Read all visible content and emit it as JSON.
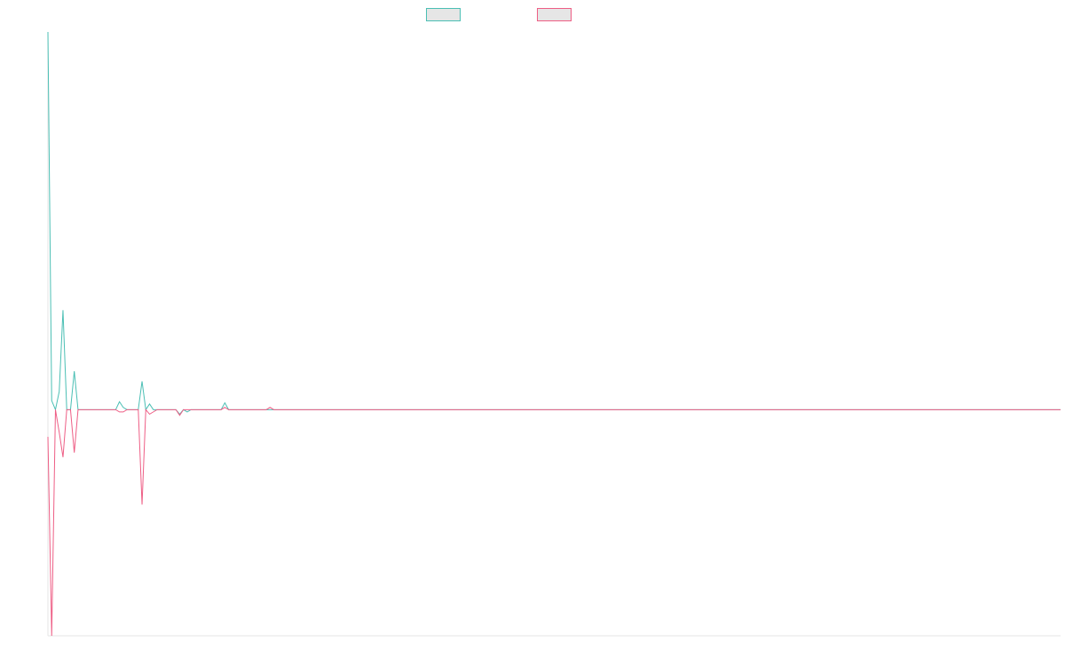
{
  "chart_data": {
    "type": "line",
    "title": "",
    "xlabel": "",
    "ylabel": "",
    "grid": false,
    "legend_position": "top-center",
    "x_count": 270,
    "ylim": [
      -1.0,
      1.67
    ],
    "series": [
      {
        "key": "series-a",
        "color": "#4bbfb4",
        "points": [
          [
            0,
            1.67
          ],
          [
            1,
            0.04
          ],
          [
            2,
            0
          ],
          [
            3,
            0.08
          ],
          [
            4,
            0.44
          ],
          [
            5,
            0
          ],
          [
            6,
            0
          ],
          [
            7,
            0.17
          ],
          [
            8,
            0
          ],
          [
            18,
            0
          ],
          [
            19,
            0.035
          ],
          [
            20,
            0.01
          ],
          [
            21,
            0
          ],
          [
            24,
            0
          ],
          [
            25,
            0.125
          ],
          [
            26,
            0
          ],
          [
            27,
            0.025
          ],
          [
            28,
            0
          ],
          [
            34,
            0
          ],
          [
            35,
            -0.02
          ],
          [
            36,
            0
          ],
          [
            37,
            -0.01
          ],
          [
            38,
            0
          ],
          [
            46,
            0
          ],
          [
            47,
            0.03
          ],
          [
            48,
            0
          ],
          [
            269,
            0
          ]
        ]
      },
      {
        "key": "series-b",
        "color": "#ee5e85",
        "points": [
          [
            0,
            -0.12
          ],
          [
            1,
            -1.0
          ],
          [
            2,
            0
          ],
          [
            3,
            -0.1
          ],
          [
            4,
            -0.21
          ],
          [
            5,
            0
          ],
          [
            6,
            0
          ],
          [
            7,
            -0.19
          ],
          [
            8,
            0
          ],
          [
            18,
            0
          ],
          [
            19,
            -0.01
          ],
          [
            20,
            -0.01
          ],
          [
            21,
            0
          ],
          [
            24,
            0
          ],
          [
            25,
            -0.42
          ],
          [
            26,
            0
          ],
          [
            27,
            -0.02
          ],
          [
            28,
            -0.01
          ],
          [
            29,
            0
          ],
          [
            34,
            0
          ],
          [
            35,
            -0.025
          ],
          [
            36,
            0
          ],
          [
            46,
            0
          ],
          [
            47,
            0.01
          ],
          [
            48,
            0
          ],
          [
            58,
            0
          ],
          [
            59,
            0.01
          ],
          [
            60,
            0
          ],
          [
            269,
            0
          ]
        ]
      }
    ]
  }
}
